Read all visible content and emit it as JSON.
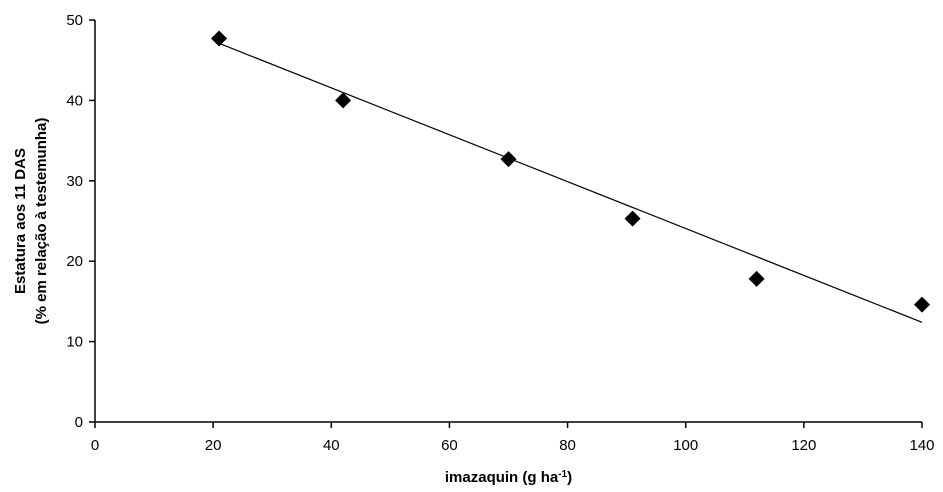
{
  "chart_data": {
    "type": "scatter",
    "title": "",
    "xlabel": {
      "main": "imazaquin (g ha",
      "sup": "-1",
      "close": ")"
    },
    "ylabel": {
      "line1": "Estatura aos 11 DAS",
      "line2": "(% em relação à testemunha)"
    },
    "xlim": [
      0,
      140
    ],
    "ylim": [
      0,
      50
    ],
    "xticks": [
      0,
      20,
      40,
      60,
      80,
      100,
      120,
      140
    ],
    "yticks": [
      0,
      10,
      20,
      30,
      40,
      50
    ],
    "series": [
      {
        "marker": "diamond",
        "x": [
          21,
          42,
          70,
          91,
          112,
          140
        ],
        "y": [
          47.7,
          40.0,
          32.7,
          25.3,
          17.8,
          14.6
        ]
      }
    ],
    "trendline": {
      "type": "linear",
      "x_range": [
        21,
        140
      ],
      "y_range": [
        47.1,
        12.4
      ]
    },
    "grid": false,
    "legend": "none"
  }
}
